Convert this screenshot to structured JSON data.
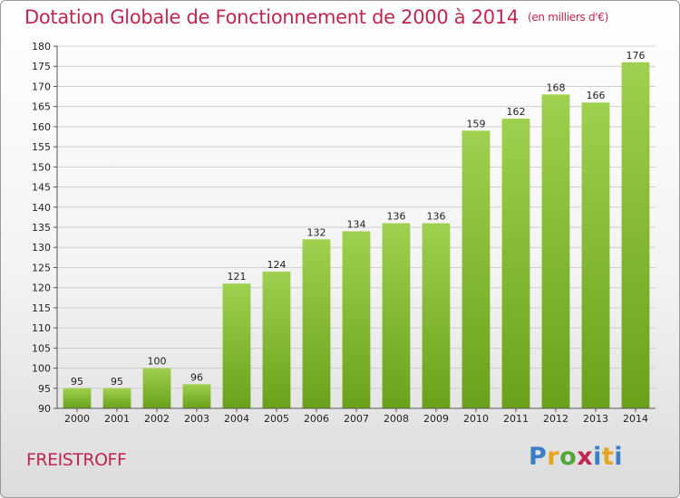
{
  "header": {
    "title": "Dotation Globale de Fonctionnement de 2000 à 2014",
    "unit": "(en milliers d'€)"
  },
  "commune": "FREISTROFF",
  "logo": {
    "text": "Proxiti"
  },
  "colors": {
    "bar_light": "#9fd04f",
    "bar_dark": "#6aa11a",
    "title": "#c0264f",
    "grid": "#cfcfcf"
  },
  "chart_data": {
    "type": "bar",
    "title": "Dotation Globale de Fonctionnement de 2000 à 2014",
    "subtitle": "(en milliers d'€)",
    "xlabel": "",
    "ylabel": "",
    "ylim": [
      90,
      180
    ],
    "ytick_step": 5,
    "grid": true,
    "categories": [
      "2000",
      "2001",
      "2002",
      "2003",
      "2004",
      "2005",
      "2006",
      "2007",
      "2008",
      "2009",
      "2010",
      "2011",
      "2012",
      "2013",
      "2014"
    ],
    "values": [
      95,
      95,
      100,
      96,
      121,
      124,
      132,
      134,
      136,
      136,
      159,
      162,
      168,
      166,
      176
    ]
  }
}
